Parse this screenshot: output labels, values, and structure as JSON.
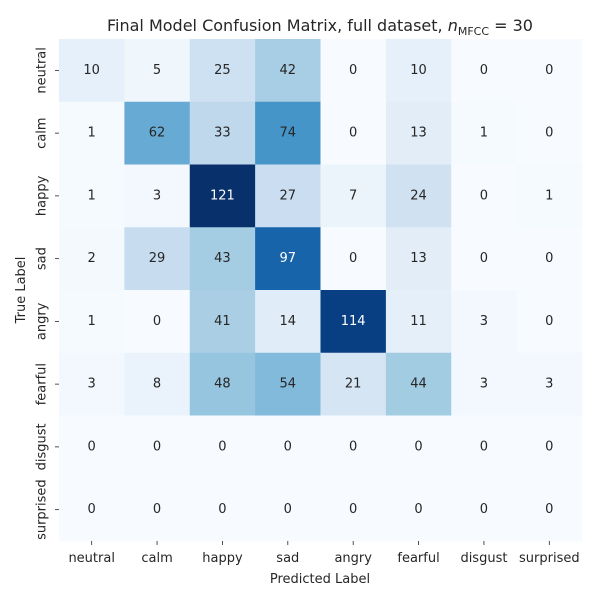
{
  "chart_data": {
    "type": "heatmap",
    "title_prefix": "Final Model Confusion Matrix, full dataset, ",
    "title_math_var": "n",
    "title_math_sub": "MFCC",
    "title_math_rest": " = 30",
    "xlabel": "Predicted Label",
    "ylabel": "True Label",
    "x_categories": [
      "neutral",
      "calm",
      "happy",
      "sad",
      "angry",
      "fearful",
      "disgust",
      "surprised"
    ],
    "y_categories": [
      "neutral",
      "calm",
      "happy",
      "sad",
      "angry",
      "fearful",
      "disgust",
      "surprised"
    ],
    "values": [
      [
        10,
        5,
        25,
        42,
        0,
        10,
        0,
        0
      ],
      [
        1,
        62,
        33,
        74,
        0,
        13,
        1,
        0
      ],
      [
        1,
        3,
        121,
        27,
        7,
        24,
        0,
        1
      ],
      [
        2,
        29,
        43,
        97,
        0,
        13,
        0,
        0
      ],
      [
        1,
        0,
        41,
        14,
        114,
        11,
        3,
        0
      ],
      [
        3,
        8,
        48,
        54,
        21,
        44,
        3,
        3
      ],
      [
        0,
        0,
        0,
        0,
        0,
        0,
        0,
        0
      ],
      [
        0,
        0,
        0,
        0,
        0,
        0,
        0,
        0
      ]
    ],
    "colormap": "Blues",
    "vmin": 0,
    "vmax": 121,
    "colorbar": false
  }
}
